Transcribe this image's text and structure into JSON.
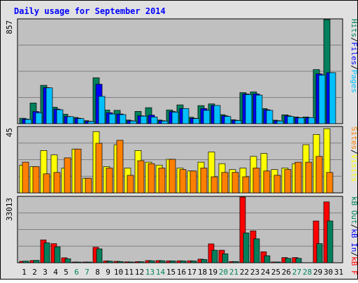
{
  "title": "Daily usage for September 2014",
  "colors": {
    "background": "#e0e0e0",
    "plot_bg": "#c0c0c0",
    "title": "#0000ff",
    "hits": "#00805c",
    "files": "#0000ff",
    "pages": "#00c0ff",
    "visits": "#ffff00",
    "sites": "#ff8000",
    "kbin": "#00805c",
    "kbout": "#ff0000",
    "weekend": "#00805c",
    "weekday": "#000000"
  },
  "chart_data": [
    {
      "type": "bar",
      "panel": "top",
      "ymax_label": "857",
      "ylim": [
        0,
        857
      ],
      "legend": [
        {
          "name": "Pages",
          "color": "#00c0ff"
        },
        {
          "name": "Files",
          "color": "#0000ff"
        },
        {
          "name": "Hits",
          "color": "#00805c"
        }
      ],
      "categories": [
        "1",
        "2",
        "3",
        "4",
        "5",
        "6",
        "7",
        "8",
        "9",
        "10",
        "11",
        "12",
        "13",
        "14",
        "15",
        "16",
        "17",
        "18",
        "19",
        "20",
        "21",
        "22",
        "23",
        "24",
        "25",
        "26",
        "27",
        "28",
        "29",
        "30",
        "31"
      ],
      "series": [
        {
          "name": "Hits",
          "values": [
            45,
            170,
            316,
            136,
            78,
            52,
            25,
            378,
            112,
            110,
            30,
            101,
            132,
            30,
            113,
            155,
            53,
            149,
            163,
            74,
            33,
            256,
            261,
            125,
            29,
            73,
            55,
            55,
            445,
            857,
            0
          ]
        },
        {
          "name": "Files",
          "values": [
            38,
            100,
            297,
            120,
            60,
            45,
            20,
            325,
            90,
            80,
            25,
            65,
            70,
            25,
            100,
            125,
            45,
            125,
            150,
            65,
            28,
            245,
            245,
            115,
            25,
            65,
            50,
            50,
            410,
            420,
            0
          ]
        },
        {
          "name": "Pages",
          "values": [
            35,
            90,
            295,
            115,
            58,
            42,
            18,
            225,
            80,
            75,
            22,
            62,
            55,
            22,
            95,
            125,
            42,
            110,
            150,
            60,
            26,
            240,
            235,
            110,
            22,
            60,
            48,
            50,
            400,
            420,
            0
          ]
        }
      ]
    },
    {
      "type": "bar",
      "panel": "middle",
      "ymax_label": "45",
      "ylim": [
        0,
        45
      ],
      "legend": [
        {
          "name": "Visits",
          "color": "#ffff00"
        },
        {
          "name": "Sites",
          "color": "#ff8000"
        }
      ],
      "series": [
        {
          "name": "Visits",
          "values": [
            19,
            18,
            29,
            26,
            17,
            30,
            10,
            42,
            18,
            33,
            17,
            29,
            21,
            19,
            23,
            17,
            15,
            21,
            28,
            20,
            16,
            17,
            25,
            27,
            16,
            17,
            20,
            33,
            40,
            44,
            0
          ]
        },
        {
          "name": "Sites",
          "values": [
            21,
            18,
            13,
            14,
            24,
            30,
            10,
            34,
            17,
            36,
            12,
            22,
            20,
            17,
            23,
            16,
            15,
            17,
            11,
            14,
            14,
            11,
            17,
            15,
            12,
            16,
            21,
            21,
            25,
            14,
            0
          ]
        }
      ]
    },
    {
      "type": "bar",
      "panel": "bottom",
      "ymax_label": "33013",
      "ylim": [
        0,
        33013
      ],
      "legend": [
        {
          "name": "kB F",
          "color": "#ff0000"
        },
        {
          "name": "kB In",
          "color": "#0000ff"
        },
        {
          "name": "kB Out",
          "color": "#00805c"
        }
      ],
      "series": [
        {
          "name": "kB Out",
          "values": [
            700,
            1100,
            11500,
            9600,
            2500,
            350,
            350,
            7800,
            900,
            700,
            450,
            550,
            1100,
            1100,
            950,
            1000,
            1000,
            1800,
            9500,
            6300,
            600,
            33013,
            16000,
            5500,
            400,
            2600,
            2600,
            0,
            21000,
            30600,
            0
          ]
        },
        {
          "name": "kB In",
          "values": [
            800,
            1200,
            10000,
            8000,
            2000,
            350,
            350,
            7000,
            800,
            600,
            400,
            500,
            1000,
            1000,
            900,
            900,
            900,
            1600,
            6300,
            4500,
            600,
            15000,
            12000,
            3500,
            400,
            2200,
            2200,
            0,
            9600,
            21000,
            0
          ]
        }
      ]
    }
  ],
  "days": [
    {
      "label": "1",
      "weekend": false
    },
    {
      "label": "2",
      "weekend": false
    },
    {
      "label": "3",
      "weekend": false
    },
    {
      "label": "4",
      "weekend": false
    },
    {
      "label": "5",
      "weekend": false
    },
    {
      "label": "6",
      "weekend": true
    },
    {
      "label": "7",
      "weekend": true
    },
    {
      "label": "8",
      "weekend": false
    },
    {
      "label": "9",
      "weekend": false
    },
    {
      "label": "10",
      "weekend": false
    },
    {
      "label": "11",
      "weekend": false
    },
    {
      "label": "12",
      "weekend": false
    },
    {
      "label": "13",
      "weekend": true
    },
    {
      "label": "14",
      "weekend": true
    },
    {
      "label": "15",
      "weekend": false
    },
    {
      "label": "16",
      "weekend": false
    },
    {
      "label": "17",
      "weekend": false
    },
    {
      "label": "18",
      "weekend": false
    },
    {
      "label": "19",
      "weekend": false
    },
    {
      "label": "20",
      "weekend": true
    },
    {
      "label": "21",
      "weekend": true
    },
    {
      "label": "22",
      "weekend": false
    },
    {
      "label": "23",
      "weekend": false
    },
    {
      "label": "24",
      "weekend": false
    },
    {
      "label": "25",
      "weekend": false
    },
    {
      "label": "26",
      "weekend": false
    },
    {
      "label": "27",
      "weekend": true
    },
    {
      "label": "28",
      "weekend": true
    },
    {
      "label": "29",
      "weekend": false
    },
    {
      "label": "30",
      "weekend": false
    },
    {
      "label": "31",
      "weekend": false
    }
  ]
}
